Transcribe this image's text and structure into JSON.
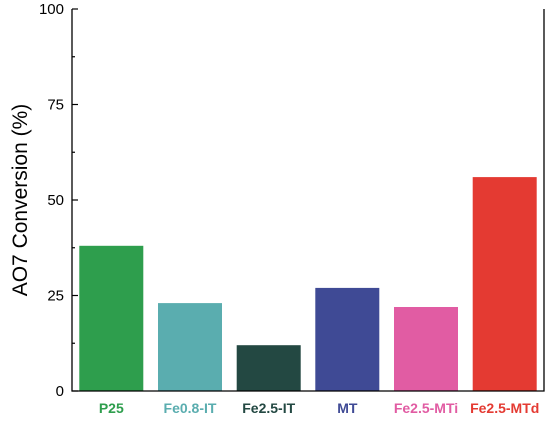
{
  "chart_data": {
    "type": "bar",
    "categories": [
      "P25",
      "Fe0.8-IT",
      "Fe2.5-IT",
      "MT",
      "Fe2.5-MTi",
      "Fe2.5-MTd"
    ],
    "values": [
      38,
      23,
      12,
      27,
      22,
      56
    ],
    "colors": [
      "#2e9e4d",
      "#5aadaf",
      "#234842",
      "#3f4a95",
      "#e15ca3",
      "#e43a32"
    ],
    "label_colors": [
      "#2e9e4d",
      "#5aadaf",
      "#234842",
      "#3f4a95",
      "#e15ca3",
      "#e43a32"
    ],
    "ylabel": "AO7 Conversion (%)",
    "xlabel": "",
    "ylim": [
      0,
      100
    ],
    "yticks": [
      0,
      25,
      50,
      75,
      100
    ],
    "ytick_labels": [
      "0",
      "25",
      "50",
      "75",
      "100"
    ],
    "grid": false,
    "legend": "none"
  }
}
